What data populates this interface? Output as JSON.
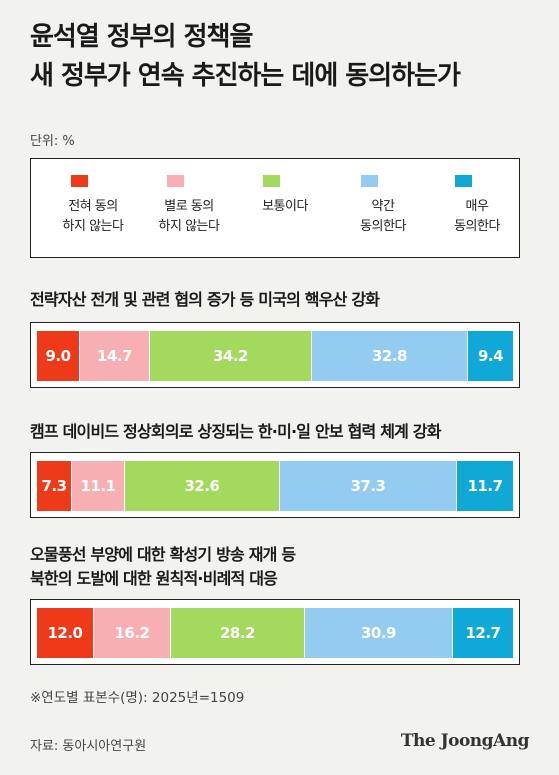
{
  "title_lines": [
    "윤석열 정부의 정책을",
    "새 정부가 연속 추진하는 데에 동의하는가"
  ],
  "unit": "단위: %",
  "legend": [
    {
      "lines": [
        "전혀 동의",
        "하지 않는다"
      ],
      "color": "#ee3a18"
    },
    {
      "lines": [
        "별로 동의",
        "하지 않는다"
      ],
      "color": "#f8afb3"
    },
    {
      "lines": [
        "보통이다"
      ],
      "color": "#a3d95c"
    },
    {
      "lines": [
        "약간",
        "동의한다"
      ],
      "color": "#93ccf0"
    },
    {
      "lines": [
        "매우",
        "동의한다"
      ],
      "color": "#10a8d6"
    }
  ],
  "chart_data": {
    "type": "bar",
    "stacked": true,
    "orientation": "horizontal",
    "categories": [
      "전략자산 전개 및 관련 협의 증가 등 미국의 핵우산 강화",
      "캠프 데이비드 정상회의로 상징되는 한·미·일 안보 협력 체계 강화",
      "오물풍선 부양에 대한 확성기 방송 재개 등 북한의 도발에 대한 원칙적·비례적 대응"
    ],
    "category_lines": [
      [
        "전략자산 전개 및 관련 협의 증가 등 미국의 핵우산 강화"
      ],
      [
        "캠프 데이비드 정상회의로 상징되는 한·미·일 안보 협력 체계 강화"
      ],
      [
        "오물풍선 부양에 대한 확성기 방송 재개 등",
        "북한의 도발에 대한 원칙적·비례적 대응"
      ]
    ],
    "series": [
      {
        "name": "전혀 동의 하지 않는다",
        "values": [
          9.0,
          7.3,
          12.0
        ],
        "labels": [
          "9.0",
          "7.3",
          "12.0"
        ]
      },
      {
        "name": "별로 동의 하지 않는다",
        "values": [
          14.7,
          11.1,
          16.2
        ],
        "labels": [
          "14.7",
          "11.1",
          "16.2"
        ]
      },
      {
        "name": "보통이다",
        "values": [
          34.2,
          32.6,
          28.2
        ],
        "labels": [
          "34.2",
          "32.6",
          "28.2"
        ]
      },
      {
        "name": "약간 동의한다",
        "values": [
          32.8,
          37.3,
          30.9
        ],
        "labels": [
          "32.8",
          "37.3",
          "30.9"
        ]
      },
      {
        "name": "매우 동의한다",
        "values": [
          9.4,
          11.7,
          12.7
        ],
        "labels": [
          "9.4",
          "11.7",
          "12.7"
        ]
      }
    ]
  },
  "note": "※연도별 표본수(명): 2025년=1509",
  "source": "자료: 동아시아연구원",
  "logo": "The JoongAng"
}
